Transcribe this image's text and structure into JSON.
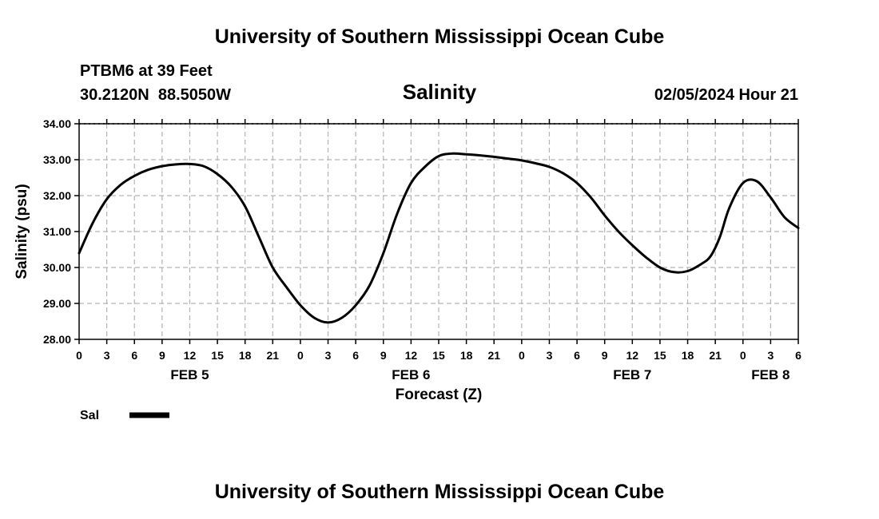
{
  "page": {
    "top_title": "University of Southern Mississippi Ocean Cube",
    "bottom_title": "University of Southern Mississippi Ocean Cube",
    "station": "PTBM6 at 39 Feet",
    "coords": "30.2120N  88.5050W",
    "datetime": "02/05/2024 Hour 21"
  },
  "chart_data": {
    "type": "line",
    "title": "Salinity",
    "xlabel": "Forecast (Z)",
    "ylabel": "Salinity (psu)",
    "x_unit": "hours from 00Z Feb 5",
    "xlim": [
      0,
      78
    ],
    "ylim": [
      28,
      34
    ],
    "yticks": [
      28,
      29,
      30,
      31,
      32,
      33,
      34
    ],
    "ytick_labels": [
      "28.00",
      "29.00",
      "30.00",
      "31.00",
      "32.00",
      "33.00",
      "34.00"
    ],
    "xticks": [
      0,
      3,
      6,
      9,
      12,
      15,
      18,
      21,
      24,
      27,
      30,
      33,
      36,
      39,
      42,
      45,
      48,
      51,
      54,
      57,
      60,
      63,
      66,
      69,
      72,
      75,
      78
    ],
    "xtick_labels": [
      "0",
      "3",
      "6",
      "9",
      "12",
      "15",
      "18",
      "21",
      "0",
      "3",
      "6",
      "9",
      "12",
      "15",
      "18",
      "21",
      "0",
      "3",
      "6",
      "9",
      "12",
      "15",
      "18",
      "21",
      "0",
      "3",
      "6"
    ],
    "day_labels": [
      {
        "label": "FEB 5",
        "hour": 12
      },
      {
        "label": "FEB 6",
        "hour": 36
      },
      {
        "label": "FEB 7",
        "hour": 60
      },
      {
        "label": "FEB 8",
        "hour": 75
      }
    ],
    "grid": true,
    "legend": "bottom-left",
    "series": [
      {
        "name": "Sal",
        "color": "#000000",
        "x": [
          0,
          1.5,
          3,
          4.5,
          6,
          7.5,
          9,
          10.5,
          12,
          13.5,
          15,
          16.5,
          18,
          19.5,
          21,
          22.5,
          24,
          25.5,
          27,
          28.5,
          30,
          31.5,
          33,
          34.5,
          36,
          37.5,
          39,
          40.5,
          42,
          43.5,
          45,
          46.5,
          48,
          49.5,
          51,
          52.5,
          54,
          55.5,
          57,
          58.5,
          60,
          61.5,
          63,
          64.5,
          66,
          67.5,
          68.5,
          69.5,
          70.5,
          72,
          73.5,
          75,
          76.5,
          78
        ],
        "y": [
          30.4,
          31.25,
          31.9,
          32.3,
          32.55,
          32.72,
          32.82,
          32.87,
          32.88,
          32.82,
          32.6,
          32.25,
          31.7,
          30.85,
          30.0,
          29.45,
          28.95,
          28.6,
          28.47,
          28.6,
          28.95,
          29.5,
          30.4,
          31.5,
          32.35,
          32.8,
          33.1,
          33.17,
          33.15,
          33.12,
          33.08,
          33.03,
          32.98,
          32.9,
          32.8,
          32.62,
          32.35,
          31.95,
          31.45,
          31.0,
          30.62,
          30.28,
          30.0,
          29.87,
          29.9,
          30.1,
          30.32,
          30.85,
          31.65,
          32.35,
          32.4,
          31.95,
          31.4,
          31.1
        ]
      }
    ]
  }
}
